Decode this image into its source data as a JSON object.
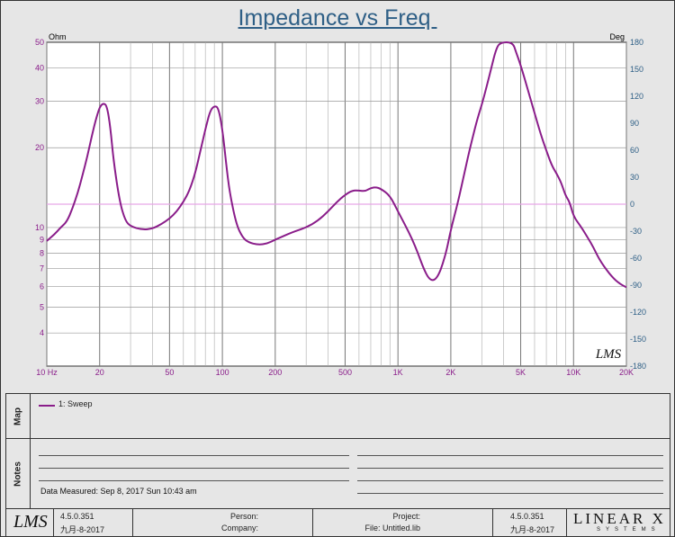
{
  "chart_data": {
    "type": "line",
    "title": "Impedance vs Freq ",
    "left_unit": "Ohm",
    "right_unit": "Deg",
    "x_scale": "log",
    "xlim": [
      10,
      20000
    ],
    "y_scale": "log",
    "ylim": [
      3,
      50
    ],
    "y2lim": [
      -180,
      180
    ],
    "x_ticks": [
      {
        "v": 10,
        "label": "10  Hz"
      },
      {
        "v": 20,
        "label": "20"
      },
      {
        "v": 50,
        "label": "50"
      },
      {
        "v": 100,
        "label": "100"
      },
      {
        "v": 200,
        "label": "200"
      },
      {
        "v": 500,
        "label": "500"
      },
      {
        "v": 1000,
        "label": "1K"
      },
      {
        "v": 2000,
        "label": "2K"
      },
      {
        "v": 5000,
        "label": "5K"
      },
      {
        "v": 10000,
        "label": "10K"
      },
      {
        "v": 20000,
        "label": "20K"
      }
    ],
    "y_ticks": [
      {
        "v": 50,
        "label": "50"
      },
      {
        "v": 40,
        "label": "40"
      },
      {
        "v": 30,
        "label": "30"
      },
      {
        "v": 20,
        "label": "20"
      },
      {
        "v": 10,
        "label": "10"
      },
      {
        "v": 9,
        "label": "9"
      },
      {
        "v": 8,
        "label": "8"
      },
      {
        "v": 7,
        "label": "7"
      },
      {
        "v": 6,
        "label": "6"
      },
      {
        "v": 5,
        "label": "5"
      },
      {
        "v": 4,
        "label": "4"
      }
    ],
    "y2_ticks": [
      180,
      150,
      120,
      90,
      60,
      30,
      0,
      -30,
      -60,
      -90,
      -120,
      -150,
      -180
    ],
    "grid": true,
    "reference_line_deg": 0,
    "series": [
      {
        "name": "1: Sweep",
        "color": "#8a1d8a",
        "points": [
          [
            10,
            8.9
          ],
          [
            11,
            9.4
          ],
          [
            12,
            10.0
          ],
          [
            13,
            10.5
          ],
          [
            14,
            11.8
          ],
          [
            15,
            13.5
          ],
          [
            16,
            15.8
          ],
          [
            17,
            18.5
          ],
          [
            18,
            22
          ],
          [
            19,
            25.5
          ],
          [
            20,
            28.5
          ],
          [
            21,
            29.5
          ],
          [
            22,
            28.8
          ],
          [
            23,
            24
          ],
          [
            24,
            17.8
          ],
          [
            26,
            12.5
          ],
          [
            28,
            10.6
          ],
          [
            30,
            10.1
          ],
          [
            35,
            9.8
          ],
          [
            40,
            9.9
          ],
          [
            45,
            10.3
          ],
          [
            50,
            10.8
          ],
          [
            55,
            11.5
          ],
          [
            60,
            12.5
          ],
          [
            65,
            13.8
          ],
          [
            70,
            16
          ],
          [
            75,
            19.5
          ],
          [
            80,
            23.5
          ],
          [
            85,
            27.5
          ],
          [
            90,
            28.8
          ],
          [
            95,
            28.3
          ],
          [
            100,
            23.5
          ],
          [
            105,
            17.5
          ],
          [
            110,
            13.5
          ],
          [
            120,
            10.3
          ],
          [
            130,
            9.2
          ],
          [
            140,
            8.8
          ],
          [
            160,
            8.6
          ],
          [
            180,
            8.7
          ],
          [
            200,
            9.0
          ],
          [
            250,
            9.6
          ],
          [
            300,
            10.0
          ],
          [
            350,
            10.6
          ],
          [
            400,
            11.5
          ],
          [
            450,
            12.5
          ],
          [
            500,
            13.3
          ],
          [
            550,
            13.8
          ],
          [
            600,
            13.8
          ],
          [
            650,
            13.7
          ],
          [
            700,
            14.1
          ],
          [
            750,
            14.2
          ],
          [
            800,
            14.0
          ],
          [
            900,
            13.2
          ],
          [
            1000,
            11.5
          ],
          [
            1100,
            10.2
          ],
          [
            1200,
            9.1
          ],
          [
            1300,
            8.0
          ],
          [
            1400,
            7.0
          ],
          [
            1500,
            6.4
          ],
          [
            1600,
            6.3
          ],
          [
            1700,
            6.6
          ],
          [
            1800,
            7.3
          ],
          [
            1900,
            8.3
          ],
          [
            2000,
            9.8
          ],
          [
            2200,
            12.5
          ],
          [
            2400,
            16.3
          ],
          [
            2600,
            20.5
          ],
          [
            2800,
            25
          ],
          [
            3000,
            29
          ],
          [
            3200,
            34
          ],
          [
            3400,
            40
          ],
          [
            3600,
            46.5
          ],
          [
            3800,
            50
          ],
          [
            4500,
            50
          ],
          [
            4700,
            46
          ],
          [
            5000,
            41
          ],
          [
            5500,
            33
          ],
          [
            6000,
            27
          ],
          [
            6500,
            22.5
          ],
          [
            7000,
            19.5
          ],
          [
            7500,
            17.2
          ],
          [
            8000,
            16
          ],
          [
            8500,
            14.8
          ],
          [
            9000,
            13.2
          ],
          [
            9500,
            12.5
          ],
          [
            10000,
            11
          ],
          [
            11000,
            10.1
          ],
          [
            12000,
            9.2
          ],
          [
            13000,
            8.4
          ],
          [
            14000,
            7.6
          ],
          [
            15000,
            7.1
          ],
          [
            16000,
            6.7
          ],
          [
            17000,
            6.4
          ],
          [
            18000,
            6.2
          ],
          [
            19000,
            6.05
          ],
          [
            20000,
            5.95
          ]
        ]
      }
    ]
  },
  "watermark": "LMS",
  "map_panel": {
    "label": "Map"
  },
  "notes_panel": {
    "label": "Notes",
    "measured": "Data Measured: Sep 8, 2017 Sun 10:43 am"
  },
  "footer": {
    "logo": "LMS",
    "version": "4.5.0.351",
    "date": "九月-8-2017",
    "person_label": "Person:",
    "company_label": "Company:",
    "project_label": "Project:",
    "file_label": "File: Untitled.lib",
    "version2": "4.5.0.351",
    "date2": "九月-8-2017",
    "brand": "LINEAR X",
    "brand_sub": "SYSTEMS"
  },
  "colors": {
    "axis_left": "#8a1d8a",
    "axis_right": "#2e5f86",
    "curve": "#8a1d8a",
    "reference": "#e6a6e6"
  }
}
